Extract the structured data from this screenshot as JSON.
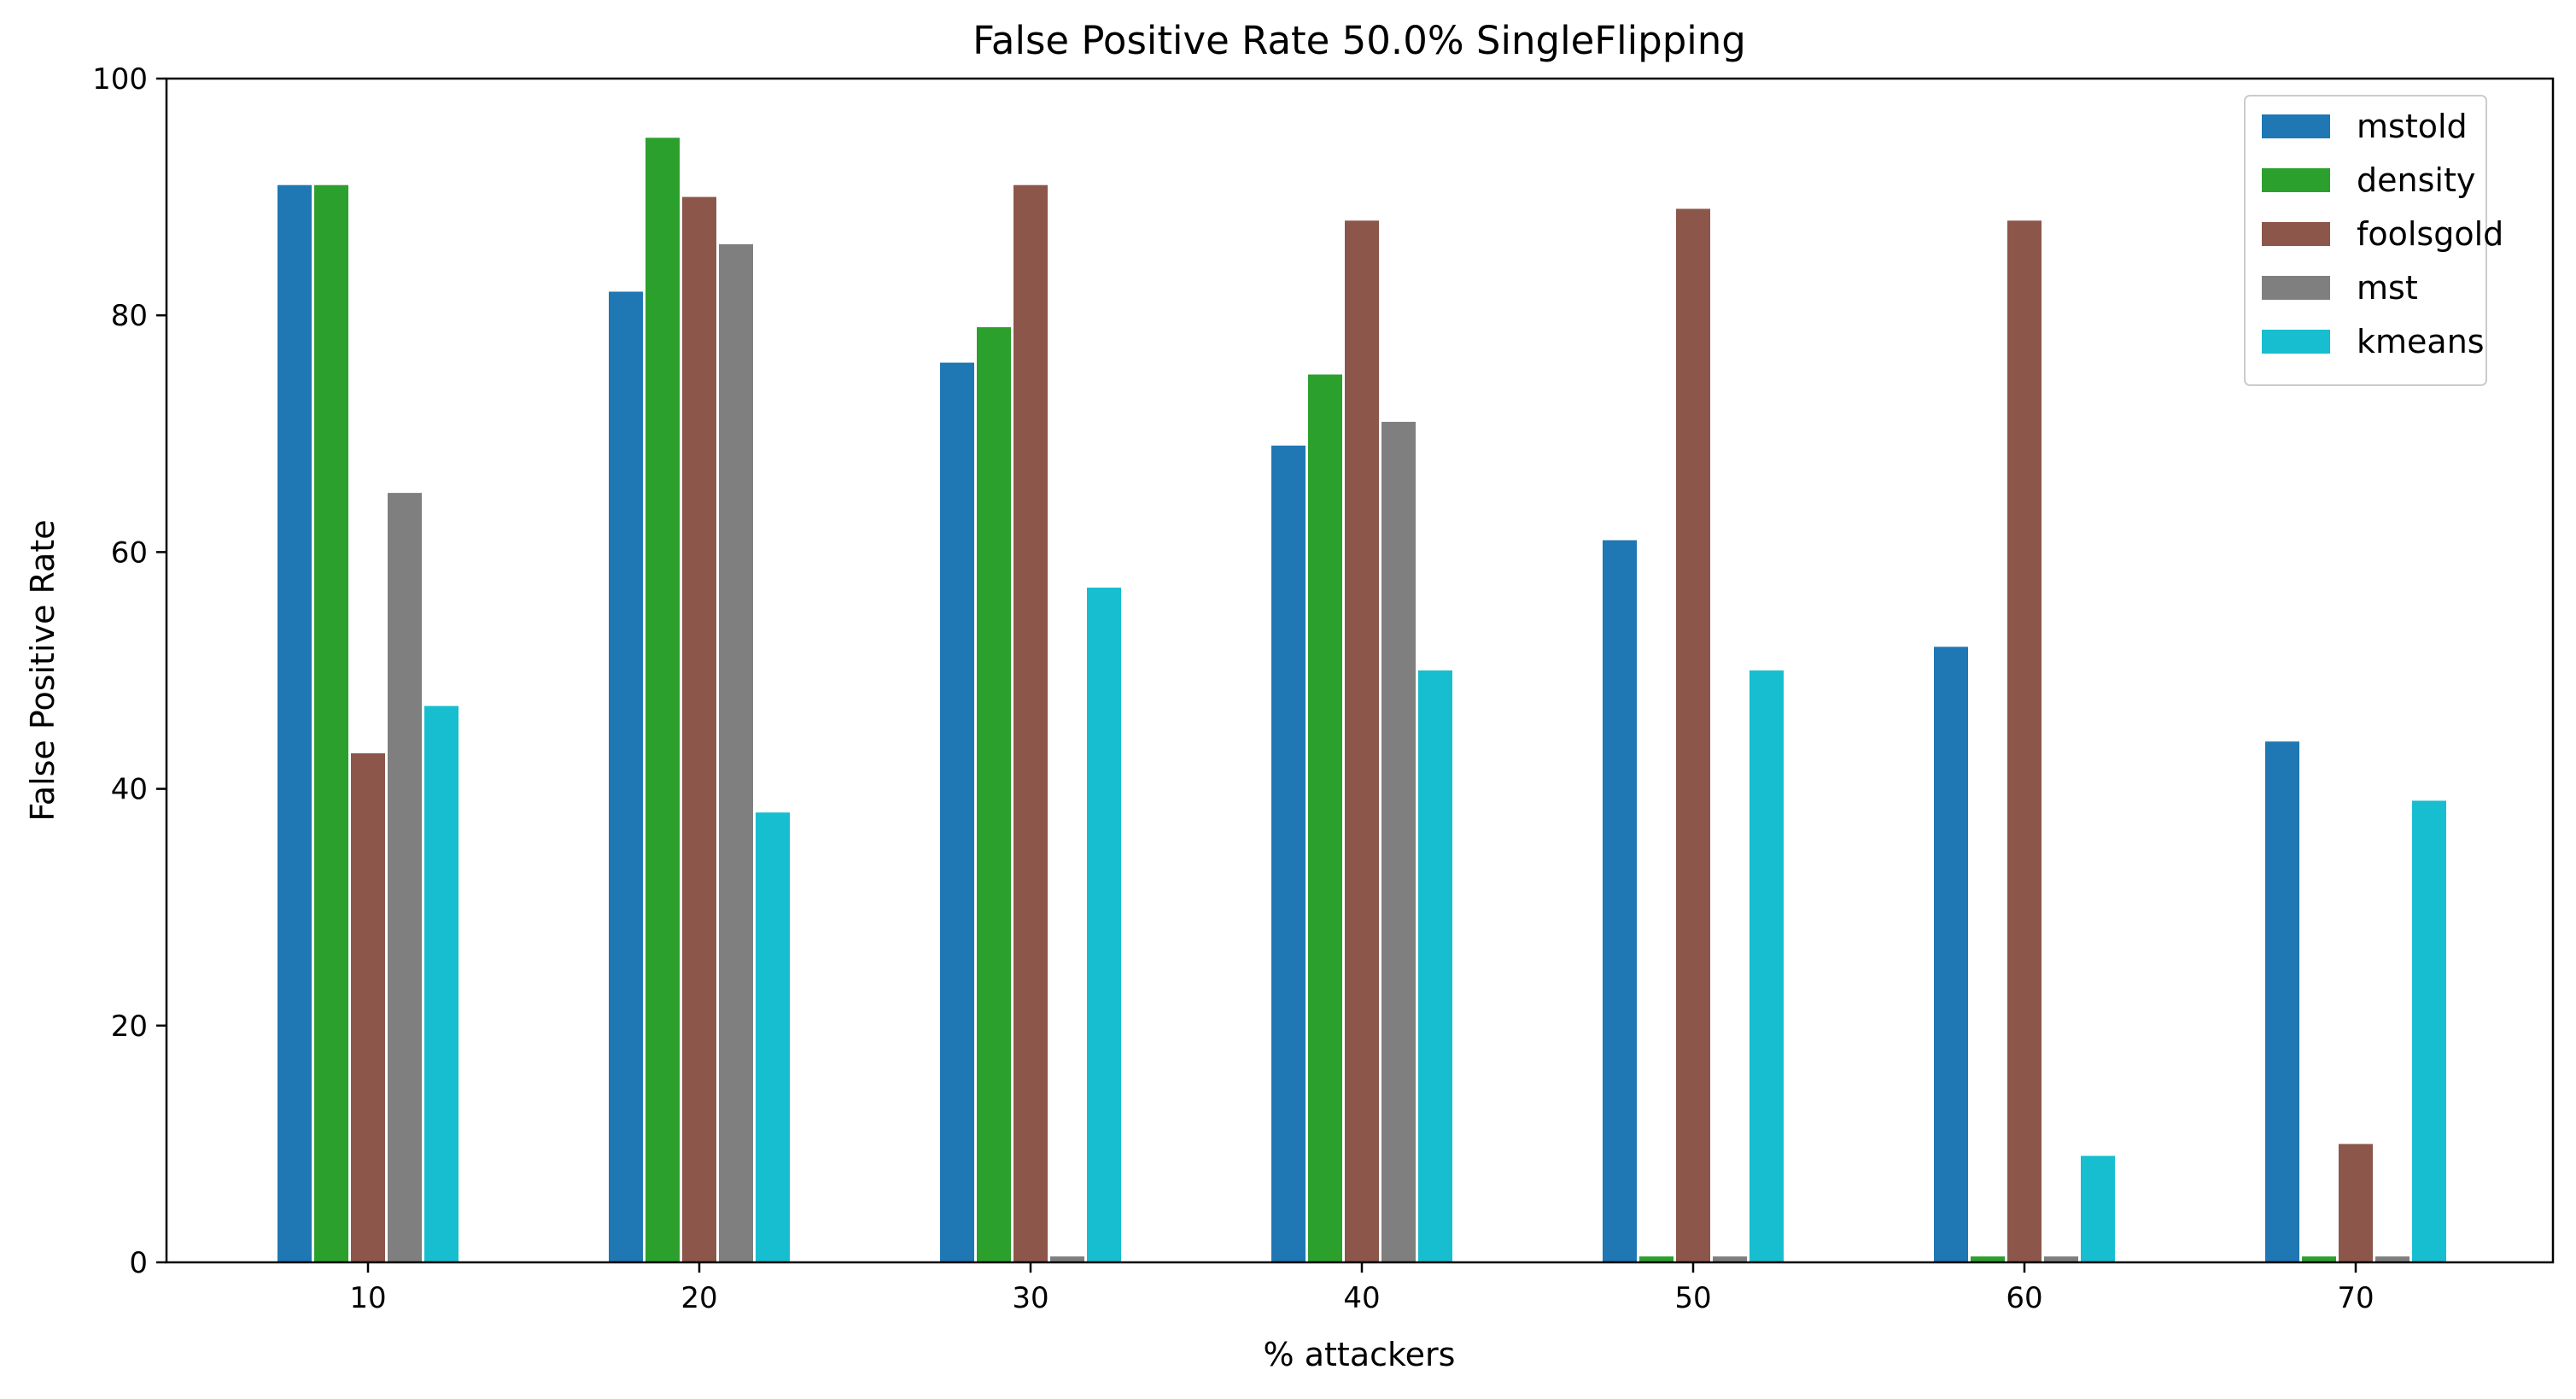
{
  "chart_data": {
    "type": "bar",
    "title": "False Positive Rate 50.0% SingleFlipping",
    "xlabel": "% attackers",
    "ylabel": "False Positive Rate",
    "categories": [
      "10",
      "20",
      "30",
      "40",
      "50",
      "60",
      "70"
    ],
    "ylim": [
      0,
      100
    ],
    "yticks": [
      "0",
      "20",
      "40",
      "60",
      "80",
      "100"
    ],
    "grid": false,
    "legend_position": "top-right",
    "series": [
      {
        "name": "mstold",
        "color": "#1f77b4",
        "values": [
          91,
          82,
          76,
          69,
          61,
          52,
          44
        ]
      },
      {
        "name": "density",
        "color": "#2ca02c",
        "values": [
          91,
          95,
          79,
          75,
          0.5,
          0.5,
          0.5
        ]
      },
      {
        "name": "foolsgold",
        "color": "#8c564b",
        "values": [
          43,
          90,
          91,
          88,
          89,
          88,
          10
        ]
      },
      {
        "name": "mst",
        "color": "#7f7f7f",
        "values": [
          65,
          86,
          0.5,
          71,
          0.5,
          0.5,
          0.5
        ]
      },
      {
        "name": "kmeans",
        "color": "#17becf",
        "values": [
          47,
          38,
          57,
          50,
          50,
          9,
          39
        ]
      }
    ]
  }
}
